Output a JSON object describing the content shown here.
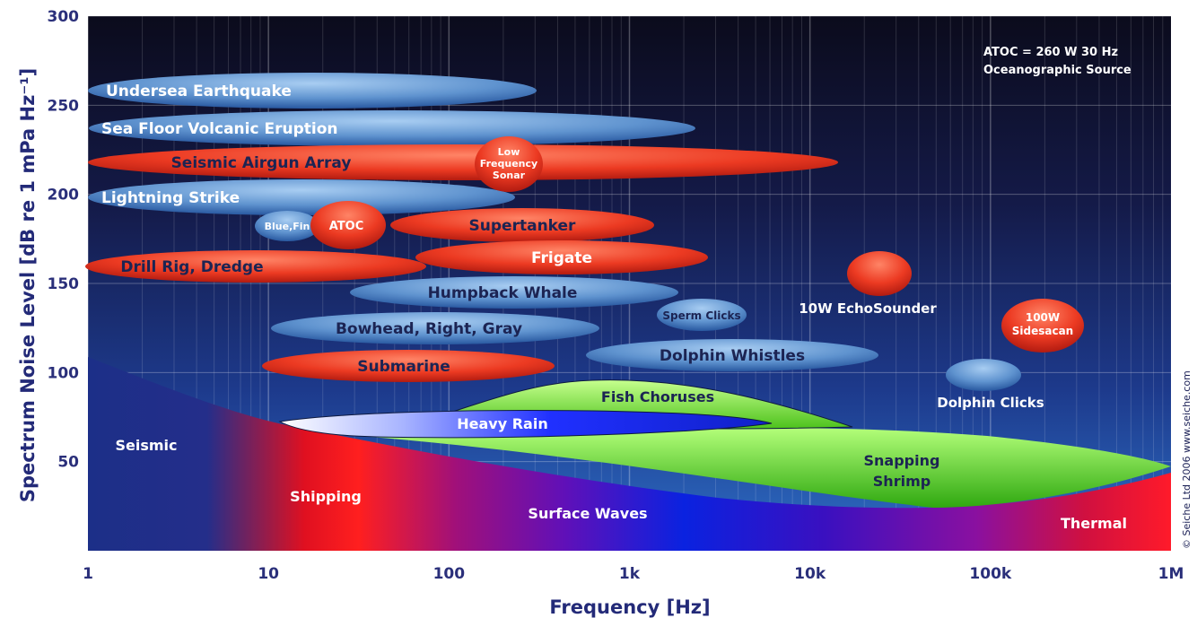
{
  "chart_data": {
    "type": "area",
    "xlabel": "Frequency [Hz]",
    "ylabel": "Spectrum Noise Level [dB re 1 mPa Hz⁻¹]",
    "x_scale": "log",
    "xlim": [
      1,
      1000000
    ],
    "ylim": [
      0,
      300
    ],
    "x_ticks": [
      {
        "value": 1,
        "label": "1"
      },
      {
        "value": 10,
        "label": "10"
      },
      {
        "value": 100,
        "label": "100"
      },
      {
        "value": 1000,
        "label": "1k"
      },
      {
        "value": 10000,
        "label": "10k"
      },
      {
        "value": 100000,
        "label": "100k"
      },
      {
        "value": 1000000,
        "label": "1M"
      }
    ],
    "y_ticks": [
      {
        "value": 50,
        "label": "50"
      },
      {
        "value": 100,
        "label": "100"
      },
      {
        "value": 150,
        "label": "150"
      },
      {
        "value": 200,
        "label": "200"
      },
      {
        "value": 250,
        "label": "250"
      },
      {
        "value": 300,
        "label": "300"
      }
    ],
    "grid": true,
    "annotation": [
      "ATOC = 260 W 30 Hz",
      "Oceanographic Source"
    ],
    "credit": "© Seiche Ltd 2006   www.seiche.com",
    "background_regions": [
      {
        "label": "Seismic",
        "f_min": 1,
        "f_max": 5,
        "level_at_1Hz": 108,
        "level_at_12Hz": 72
      },
      {
        "label": "Shipping",
        "f_min": 5,
        "f_max": 50
      },
      {
        "label": "Surface Waves",
        "f_min": 50,
        "f_max": 50000
      },
      {
        "label": "Thermal",
        "f_min": 50000,
        "f_max": 1000000,
        "level_at_1MHz": 45
      }
    ],
    "bands": [
      {
        "label": "Fish Choruses",
        "f_min": 50,
        "f_max": 15000,
        "db_min": 72,
        "db_max": 95
      },
      {
        "label": "Heavy Rain",
        "f_min": 12,
        "f_max": 8000,
        "db_min": 65,
        "db_max": 76
      },
      {
        "label": "Snapping Shrimp",
        "f_min": 50,
        "f_max": 1000000,
        "db_min": 25,
        "db_max": 72
      }
    ],
    "sources": [
      {
        "label": "Undersea Earthquake",
        "kind": "natural",
        "f_min": 1,
        "f_max": 300,
        "db_min": 238,
        "db_max": 272
      },
      {
        "label": "Sea Floor Volcanic Eruption",
        "kind": "natural",
        "f_min": 1,
        "f_max": 2300,
        "db_min": 218,
        "db_max": 250
      },
      {
        "label": "Seismic Airgun Array",
        "kind": "manmade",
        "f_min": 1,
        "f_max": 14000,
        "db_min": 200,
        "db_max": 228
      },
      {
        "label": "Low Frequency Sonar",
        "kind": "manmade",
        "f_min": 80,
        "f_max": 500,
        "db_min": 200,
        "db_max": 232
      },
      {
        "label": "Lightning Strike",
        "kind": "natural",
        "f_min": 1,
        "f_max": 300,
        "db_min": 186,
        "db_max": 208
      },
      {
        "label": "Blue,Fin",
        "kind": "natural",
        "f_min": 9,
        "f_max": 26,
        "db_min": 172,
        "db_max": 190
      },
      {
        "label": "ATOC",
        "kind": "manmade",
        "f_min": 18,
        "f_max": 35,
        "db_min": 168,
        "db_max": 196
      },
      {
        "label": "Supertanker",
        "kind": "manmade",
        "f_min": 40,
        "f_max": 1200,
        "db_min": 174,
        "db_max": 190
      },
      {
        "label": "Drill Rig, Dredge",
        "kind": "manmade",
        "f_min": 1,
        "f_max": 70,
        "db_min": 152,
        "db_max": 168
      },
      {
        "label": "Frigate",
        "kind": "manmade",
        "f_min": 50,
        "f_max": 2400,
        "db_min": 154,
        "db_max": 174
      },
      {
        "label": "Humpback Whale",
        "kind": "natural",
        "f_min": 30,
        "f_max": 1800,
        "db_min": 140,
        "db_max": 156
      },
      {
        "label": "Sperm Clicks",
        "kind": "natural",
        "f_min": 1500,
        "f_max": 5000,
        "db_min": 124,
        "db_max": 142
      },
      {
        "label": "10W EchoSounder",
        "kind": "manmade",
        "f_min": 15000,
        "f_max": 30000,
        "db_min": 146,
        "db_max": 168
      },
      {
        "label": "Bowhead, Right, Gray",
        "kind": "natural",
        "f_min": 10,
        "f_max": 1000,
        "db_min": 118,
        "db_max": 136
      },
      {
        "label": "100W Sidesacan",
        "kind": "manmade",
        "f_min": 120000,
        "f_max": 300000,
        "db_min": 112,
        "db_max": 140
      },
      {
        "label": "Dolphin Whistles",
        "kind": "natural",
        "f_min": 500,
        "f_max": 20000,
        "db_min": 104,
        "db_max": 122
      },
      {
        "label": "Submarine",
        "kind": "manmade",
        "f_min": 8,
        "f_max": 400,
        "db_min": 96,
        "db_max": 114
      },
      {
        "label": "Dolphin Clicks",
        "kind": "natural",
        "f_min": 50000,
        "f_max": 150000,
        "db_min": 90,
        "db_max": 106
      }
    ]
  }
}
